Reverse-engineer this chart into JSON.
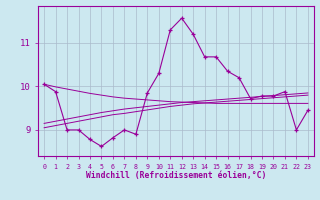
{
  "xlabel": "Windchill (Refroidissement éolien,°C)",
  "x": [
    0,
    1,
    2,
    3,
    4,
    5,
    6,
    7,
    8,
    9,
    10,
    11,
    12,
    13,
    14,
    15,
    16,
    17,
    18,
    19,
    20,
    21,
    22,
    23
  ],
  "y_main": [
    10.05,
    9.88,
    9.0,
    9.0,
    8.78,
    8.62,
    8.82,
    9.0,
    8.9,
    9.85,
    10.3,
    11.3,
    11.57,
    11.2,
    10.68,
    10.68,
    10.35,
    10.2,
    9.72,
    9.78,
    9.78,
    9.88,
    9.0,
    9.45
  ],
  "y_trend1": [
    9.05,
    9.1,
    9.15,
    9.2,
    9.25,
    9.3,
    9.35,
    9.38,
    9.42,
    9.46,
    9.5,
    9.54,
    9.57,
    9.6,
    9.62,
    9.64,
    9.66,
    9.68,
    9.7,
    9.72,
    9.74,
    9.76,
    9.78,
    9.8
  ],
  "y_trend2": [
    9.15,
    9.2,
    9.25,
    9.3,
    9.35,
    9.4,
    9.44,
    9.48,
    9.51,
    9.54,
    9.57,
    9.6,
    9.63,
    9.65,
    9.67,
    9.69,
    9.71,
    9.73,
    9.75,
    9.77,
    9.79,
    9.81,
    9.83,
    9.85
  ],
  "y_trend3": [
    10.05,
    9.99,
    9.94,
    9.89,
    9.84,
    9.8,
    9.76,
    9.73,
    9.71,
    9.69,
    9.67,
    9.65,
    9.64,
    9.63,
    9.62,
    9.61,
    9.61,
    9.61,
    9.61,
    9.61,
    9.61,
    9.61,
    9.61,
    9.61
  ],
  "line_color": "#990099",
  "bg_color": "#cce8f0",
  "grid_color": "#aabbcc",
  "ylim": [
    8.4,
    11.85
  ],
  "yticks": [
    9,
    10,
    11
  ],
  "xtick_labels": [
    "0",
    "1",
    "2",
    "3",
    "4",
    "5",
    "6",
    "7",
    "8",
    "9",
    "10",
    "11",
    "12",
    "13",
    "14",
    "15",
    "16",
    "17",
    "18",
    "19",
    "20",
    "21",
    "22",
    "23"
  ]
}
